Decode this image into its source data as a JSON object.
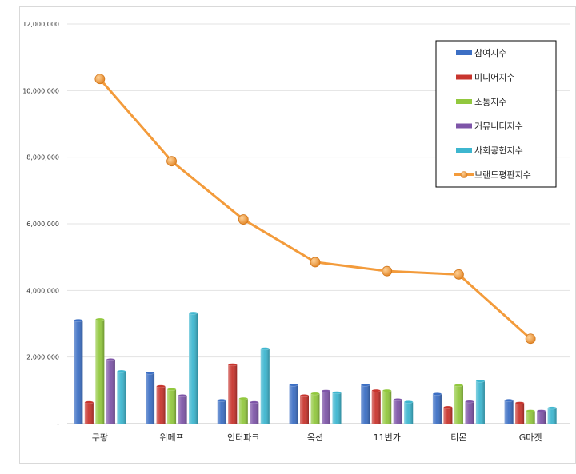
{
  "chart_data": {
    "type": "bar",
    "categories": [
      "쿠팡",
      "위메프",
      "인터파크",
      "옥션",
      "11번가",
      "티몬",
      "G마켓"
    ],
    "ylim": [
      0,
      12000000
    ],
    "yticks": [
      "-",
      "2,000,000",
      "4,000,000",
      "6,000,000",
      "8,000,000",
      "10,000,000",
      "12,000,000"
    ],
    "grid": true,
    "legend_position": "top-right",
    "series": [
      {
        "name": "참여지수",
        "color": "#3c6fc4",
        "values": [
          3100000,
          1520000,
          700000,
          1160000,
          1160000,
          890000,
          700000
        ]
      },
      {
        "name": "미디어지수",
        "color": "#c8352e",
        "values": [
          640000,
          1120000,
          1770000,
          840000,
          990000,
          490000,
          620000
        ]
      },
      {
        "name": "소통지수",
        "color": "#92c83e",
        "values": [
          3130000,
          1030000,
          750000,
          900000,
          990000,
          1150000,
          380000
        ]
      },
      {
        "name": "커뮤니티지수",
        "color": "#7e55a8",
        "values": [
          1920000,
          840000,
          640000,
          980000,
          720000,
          660000,
          380000
        ]
      },
      {
        "name": "사회공헌지수",
        "color": "#3db6cf",
        "values": [
          1570000,
          3320000,
          2250000,
          930000,
          650000,
          1280000,
          470000
        ]
      }
    ],
    "line_series": {
      "name": "브랜드평판지수",
      "color": "#f39b3b",
      "values": [
        10350000,
        7880000,
        6130000,
        4850000,
        4580000,
        4480000,
        2550000
      ]
    }
  }
}
